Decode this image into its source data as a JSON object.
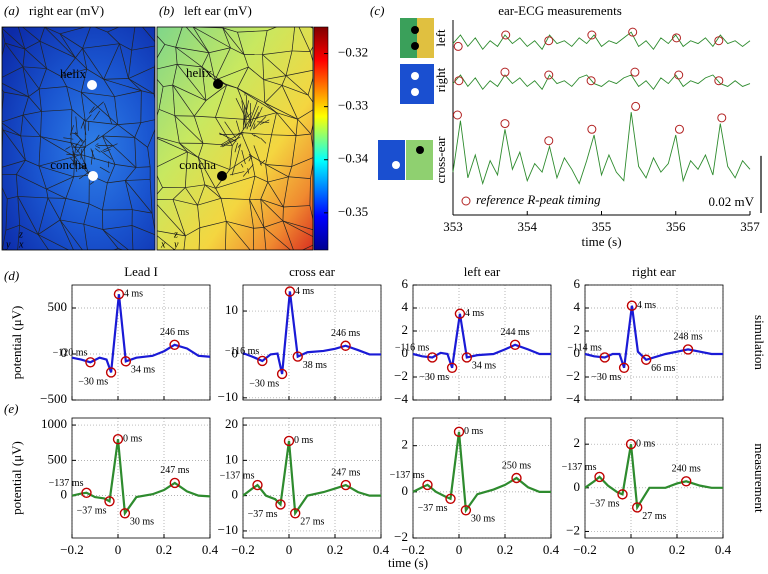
{
  "chart_data": [
    {
      "type": "heatmap",
      "panel": "(a)",
      "title": "right ear (mV)",
      "colormap": "jet",
      "annotations": [
        "helix",
        "concha"
      ],
      "axis_labels": [
        "z",
        "y",
        "x"
      ]
    },
    {
      "type": "heatmap",
      "panel": "(b)",
      "title": "left ear (mV)",
      "colormap": "jet",
      "annotations": [
        "helix",
        "concha"
      ],
      "axis_labels": [
        "z",
        "x",
        "y"
      ],
      "clim": [
        -0.357,
        -0.315
      ],
      "cticks": [
        {
          "value": -0.32,
          "label": "−0.32"
        },
        {
          "value": -0.33,
          "label": "−0.33"
        },
        {
          "value": -0.34,
          "label": "−0.34"
        },
        {
          "value": -0.35,
          "label": "−0.35"
        }
      ]
    },
    {
      "type": "line",
      "panel": "(c)",
      "title": "ear-ECG measurements",
      "xlabel": "time (s)",
      "xlim": [
        353,
        357
      ],
      "xticks": [
        353,
        354,
        355,
        356,
        357
      ],
      "ylim": [
        -0.025,
        0.045
      ],
      "x": [
        353.0,
        353.1,
        353.2,
        353.3,
        353.4,
        353.5,
        353.6,
        353.7,
        353.8,
        353.9,
        354.0,
        354.1,
        354.2,
        354.3,
        354.4,
        354.5,
        354.6,
        354.7,
        354.8,
        354.9,
        355.0,
        355.1,
        355.2,
        355.3,
        355.4,
        355.5,
        355.6,
        355.7,
        355.8,
        355.9,
        356.0,
        356.1,
        356.2,
        356.3,
        356.4,
        356.5,
        356.6,
        356.7,
        356.8,
        356.9,
        357.0
      ],
      "series": [
        {
          "name": "left",
          "color": "#2e8b2e",
          "values": [
            0.035,
            0.038,
            0.034,
            0.037,
            0.033,
            0.036,
            0.034,
            0.038,
            0.035,
            0.037,
            0.034,
            0.036,
            0.033,
            0.038,
            0.035,
            0.036,
            0.034,
            0.037,
            0.035,
            0.038,
            0.034,
            0.036,
            0.035,
            0.037,
            0.039,
            0.034,
            0.036,
            0.033,
            0.037,
            0.035,
            0.038,
            0.034,
            0.036,
            0.035,
            0.037,
            0.034,
            0.038,
            0.035,
            0.036,
            0.034,
            0.036
          ],
          "peaks": {
            "x": [
              353.07,
              353.71,
              354.29,
              354.87,
              355.42,
              356.01,
              356.58
            ],
            "y": [
              0.034,
              0.038,
              0.036,
              0.038,
              0.039,
              0.037,
              0.036
            ]
          }
        },
        {
          "name": "right",
          "color": "#2e8b2e",
          "values": [
            0.021,
            0.024,
            0.02,
            0.023,
            0.019,
            0.022,
            0.02,
            0.024,
            0.021,
            0.023,
            0.02,
            0.022,
            0.019,
            0.024,
            0.021,
            0.022,
            0.02,
            0.023,
            0.024,
            0.021,
            0.02,
            0.022,
            0.021,
            0.023,
            0.024,
            0.02,
            0.022,
            0.019,
            0.023,
            0.021,
            0.024,
            0.02,
            0.022,
            0.021,
            0.023,
            0.024,
            0.021,
            0.02,
            0.022,
            0.02,
            0.021
          ],
          "peaks": {
            "x": [
              353.08,
              353.7,
              354.29,
              354.86,
              355.45,
              356.04,
              356.58
            ],
            "y": [
              0.022,
              0.025,
              0.024,
              0.022,
              0.025,
              0.024,
              0.022
            ]
          }
        },
        {
          "name": "cross-ear",
          "color": "#2e8b2e",
          "values": [
            -0.01,
            0.008,
            -0.012,
            -0.004,
            -0.014,
            -0.006,
            -0.011,
            0.005,
            -0.009,
            -0.003,
            -0.013,
            -0.007,
            -0.01,
            -0.001,
            -0.012,
            -0.005,
            -0.009,
            -0.014,
            -0.006,
            0.003,
            -0.011,
            -0.004,
            -0.01,
            -0.013,
            0.011,
            -0.008,
            -0.012,
            -0.005,
            -0.01,
            -0.007,
            0.003,
            -0.013,
            -0.006,
            -0.009,
            -0.004,
            -0.011,
            0.007,
            -0.008,
            -0.012,
            -0.006,
            -0.009
          ],
          "peaks": {
            "x": [
              353.06,
              353.7,
              354.29,
              354.87,
              355.46,
              356.05,
              356.62
            ],
            "y": [
              0.01,
              0.007,
              0.001,
              0.005,
              0.013,
              0.005,
              0.009
            ]
          }
        }
      ],
      "marker_color": "#b22222",
      "markers_label": "reference R-peak timing",
      "scale_bar": {
        "value": 0.02,
        "label": "0.02 mV"
      }
    },
    {
      "type": "line",
      "panel": "(d)",
      "title": "Lead I",
      "ylabel": "potential (μV)",
      "xlim": [
        -0.2,
        0.4
      ],
      "xticks": [
        -0.2,
        0,
        0.2,
        0.4
      ],
      "show_xtick_labels": false,
      "ylim": [
        -500,
        750
      ],
      "yticks": [
        {
          "value": -500,
          "label": "−500"
        },
        0,
        500
      ],
      "grid": true,
      "color": "#1a1ad6",
      "marker_color": "#c00000",
      "x": [
        -0.2,
        -0.16,
        -0.12,
        -0.08,
        -0.05,
        -0.03,
        0.004,
        0.034,
        0.08,
        0.15,
        0.2,
        0.246,
        0.3,
        0.35,
        0.4
      ],
      "values": [
        -40,
        -60,
        -90,
        -40,
        -60,
        -200,
        650,
        -80,
        -40,
        -20,
        30,
        100,
        60,
        -20,
        -30
      ],
      "markers": {
        "x": [
          -0.12,
          -0.03,
          0.004,
          0.034,
          0.246
        ],
        "y": [
          -90,
          -200,
          650,
          -80,
          100
        ],
        "labels": [
          "−120 ms",
          "−30 ms",
          "4 ms",
          "34 ms",
          "246 ms"
        ]
      }
    },
    {
      "type": "line",
      "title": "cross ear",
      "xlim": [
        -0.2,
        0.4
      ],
      "xticks": [
        -0.2,
        0,
        0.2,
        0.4
      ],
      "show_xtick_labels": false,
      "ylim": [
        -10.5,
        16
      ],
      "yticks": [
        {
          "value": -10,
          "label": "−10"
        },
        0,
        10
      ],
      "grid": true,
      "color": "#1a1ad6",
      "marker_color": "#c00000",
      "x": [
        -0.2,
        -0.16,
        -0.116,
        -0.08,
        -0.05,
        -0.03,
        0.004,
        0.038,
        0.08,
        0.15,
        0.2,
        0.246,
        0.3,
        0.35,
        0.4
      ],
      "values": [
        0.3,
        -0.5,
        -1.5,
        0,
        0.2,
        -4.5,
        14.5,
        -0.5,
        0.5,
        0.8,
        1.3,
        2,
        1,
        0,
        0
      ],
      "markers": {
        "x": [
          -0.116,
          -0.03,
          0.004,
          0.038,
          0.246
        ],
        "y": [
          -1.5,
          -4.5,
          14.5,
          -0.5,
          2
        ],
        "labels": [
          "−116 ms",
          "−30 ms",
          "4 ms",
          "38 ms",
          "246 ms"
        ]
      }
    },
    {
      "type": "line",
      "title": "left ear",
      "xlim": [
        -0.2,
        0.4
      ],
      "xticks": [
        -0.2,
        0,
        0.2,
        0.4
      ],
      "show_xtick_labels": false,
      "ylim": [
        -4,
        6
      ],
      "yticks": [
        {
          "value": -4,
          "label": "−4"
        },
        {
          "value": -2,
          "label": "−2"
        },
        0,
        2,
        4,
        6
      ],
      "grid": true,
      "color": "#1a1ad6",
      "marker_color": "#c00000",
      "x": [
        -0.2,
        -0.16,
        -0.116,
        -0.08,
        -0.05,
        -0.03,
        0.004,
        0.034,
        0.08,
        0.15,
        0.2,
        0.244,
        0.3,
        0.35,
        0.4
      ],
      "values": [
        0,
        -0.2,
        -0.3,
        0.1,
        0,
        -1.2,
        3.5,
        -0.3,
        -0.1,
        0,
        0.4,
        0.8,
        0.4,
        0,
        0
      ],
      "markers": {
        "x": [
          -0.116,
          -0.03,
          0.004,
          0.034,
          0.244
        ],
        "y": [
          -0.3,
          -1.2,
          3.5,
          -0.3,
          0.8
        ],
        "labels": [
          "−116 ms",
          "−30 ms",
          "4 ms",
          "34 ms",
          "244 ms"
        ]
      }
    },
    {
      "type": "line",
      "title": "right ear",
      "row_label": "simulation",
      "xlim": [
        -0.2,
        0.4
      ],
      "xticks": [
        -0.2,
        0,
        0.2,
        0.4
      ],
      "show_xtick_labels": false,
      "ylim": [
        -4,
        6
      ],
      "yticks": [
        {
          "value": -4,
          "label": "−4"
        },
        {
          "value": -2,
          "label": "−2"
        },
        0,
        2,
        4,
        6
      ],
      "grid": true,
      "color": "#1a1ad6",
      "marker_color": "#c00000",
      "x": [
        -0.2,
        -0.16,
        -0.114,
        -0.08,
        -0.05,
        -0.03,
        0.004,
        0.03,
        0.066,
        0.15,
        0.2,
        0.248,
        0.3,
        0.35,
        0.4
      ],
      "values": [
        0,
        -0.2,
        -0.3,
        0,
        0,
        -1.2,
        4.2,
        0.2,
        -0.5,
        0,
        0.2,
        0.4,
        0.2,
        0,
        0
      ],
      "markers": {
        "x": [
          -0.114,
          -0.03,
          0.004,
          0.066,
          0.248
        ],
        "y": [
          -0.3,
          -1.2,
          4.2,
          -0.5,
          0.4
        ],
        "labels": [
          "−114 ms",
          "−30 ms",
          "4 ms",
          "66 ms",
          "248 ms"
        ]
      }
    },
    {
      "type": "line",
      "panel": "(e)",
      "ylabel": "potential (μV)",
      "xlim": [
        -0.2,
        0.4
      ],
      "xticks": [
        {
          "value": -0.2,
          "label": "−0.2"
        },
        0,
        0.2,
        0.4
      ],
      "ylim": [
        -600,
        1100
      ],
      "yticks": [
        0,
        500,
        1000
      ],
      "grid": true,
      "color": "#2e8b2e",
      "marker_color": "#c00000",
      "x": [
        -0.2,
        -0.16,
        -0.137,
        -0.1,
        -0.06,
        -0.037,
        0,
        0.03,
        0.08,
        0.15,
        0.2,
        0.247,
        0.3,
        0.35,
        0.4
      ],
      "values": [
        0,
        30,
        40,
        -20,
        -40,
        -80,
        800,
        -250,
        -20,
        20,
        80,
        180,
        60,
        0,
        -10
      ],
      "markers": {
        "x": [
          -0.137,
          -0.037,
          0,
          0.03,
          0.247
        ],
        "y": [
          40,
          -80,
          800,
          -250,
          180
        ],
        "labels": [
          "−137 ms",
          "−37 ms",
          "0 ms",
          "30 ms",
          "247 ms"
        ]
      }
    },
    {
      "type": "line",
      "xlabel": "time (s)",
      "xlim": [
        -0.2,
        0.4
      ],
      "xticks": [
        {
          "value": -0.2,
          "label": "−0.2"
        },
        0,
        0.2,
        0.4
      ],
      "ylim": [
        -12,
        22
      ],
      "yticks": [
        {
          "value": -10,
          "label": "−10"
        },
        0,
        10,
        20
      ],
      "grid": true,
      "color": "#2e8b2e",
      "marker_color": "#c00000",
      "x": [
        -0.2,
        -0.16,
        -0.137,
        -0.1,
        -0.06,
        -0.037,
        0,
        0.027,
        0.08,
        0.15,
        0.2,
        0.247,
        0.3,
        0.35,
        0.4
      ],
      "values": [
        0,
        2,
        3,
        0,
        -1,
        -2.5,
        15.5,
        -5,
        0,
        1,
        2,
        3,
        1,
        0,
        0
      ],
      "markers": {
        "x": [
          -0.137,
          -0.037,
          0,
          0.027,
          0.247
        ],
        "y": [
          3,
          -2.5,
          15.5,
          -5,
          3
        ],
        "labels": [
          "−137 ms",
          "−37 ms",
          "0 ms",
          "27 ms",
          "247 ms"
        ]
      }
    },
    {
      "type": "line",
      "xlim": [
        -0.2,
        0.4
      ],
      "xticks": [
        {
          "value": -0.2,
          "label": "−0.2"
        },
        0,
        0.2,
        0.4
      ],
      "ylim": [
        -2,
        3.2
      ],
      "yticks": [
        {
          "value": -2,
          "label": "−2"
        },
        0,
        2
      ],
      "grid": true,
      "color": "#2e8b2e",
      "marker_color": "#c00000",
      "x": [
        -0.2,
        -0.16,
        -0.137,
        -0.1,
        -0.06,
        -0.037,
        0,
        0.03,
        0.08,
        0.15,
        0.2,
        0.25,
        0.3,
        0.35,
        0.4
      ],
      "values": [
        0,
        0.2,
        0.3,
        0,
        -0.2,
        -0.3,
        2.6,
        -0.8,
        -0.1,
        0.1,
        0.3,
        0.6,
        0.2,
        0,
        0
      ],
      "markers": {
        "x": [
          -0.137,
          -0.037,
          0,
          0.03,
          0.25
        ],
        "y": [
          0.3,
          -0.3,
          2.6,
          -0.8,
          0.6
        ],
        "labels": [
          "−137 ms",
          "−37 ms",
          "0 ms",
          "30 ms",
          "250 ms"
        ]
      }
    },
    {
      "type": "line",
      "row_label": "measurement",
      "xlim": [
        -0.2,
        0.4
      ],
      "xticks": [
        {
          "value": -0.2,
          "label": "−0.2"
        },
        0,
        0.2,
        0.4
      ],
      "ylim": [
        -2.3,
        3.2
      ],
      "yticks": [
        {
          "value": -2,
          "label": "−2"
        },
        0,
        2
      ],
      "grid": true,
      "color": "#2e8b2e",
      "marker_color": "#c00000",
      "x": [
        -0.2,
        -0.16,
        -0.137,
        -0.1,
        -0.06,
        -0.037,
        0,
        0.027,
        0.08,
        0.15,
        0.2,
        0.24,
        0.3,
        0.35,
        0.4
      ],
      "values": [
        0,
        0.3,
        0.5,
        0.1,
        -0.2,
        -0.3,
        2,
        -0.9,
        0,
        0,
        0.2,
        0.3,
        0.1,
        0,
        0
      ],
      "markers": {
        "x": [
          -0.137,
          -0.037,
          0,
          0.027,
          0.24
        ],
        "y": [
          0.5,
          -0.3,
          2,
          -0.9,
          0.3
        ],
        "labels": [
          "−137 ms",
          "−37 ms",
          "0 ms",
          "27 ms",
          "240 ms"
        ]
      }
    }
  ]
}
